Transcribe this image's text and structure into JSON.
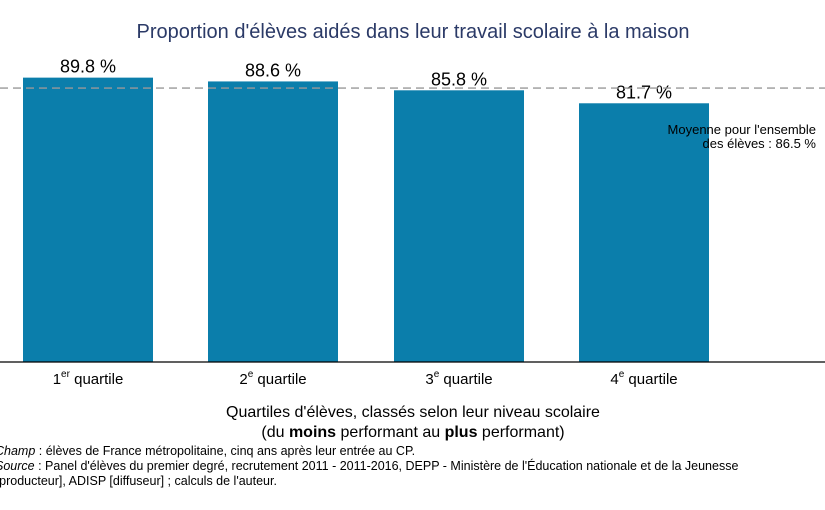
{
  "chart_data": {
    "type": "bar",
    "title": "Proportion d'élèves aidés dans leur travail scolaire à la maison",
    "categories": [
      {
        "main": "1",
        "sup": "er",
        "rest": " quartile"
      },
      {
        "main": "2",
        "sup": "e",
        "rest": " quartile"
      },
      {
        "main": "3",
        "sup": "e",
        "rest": " quartile"
      },
      {
        "main": "4",
        "sup": "e",
        "rest": " quartile"
      }
    ],
    "values": [
      89.8,
      88.6,
      85.8,
      81.7
    ],
    "value_labels": [
      "89.8 %",
      "88.6 %",
      "85.8 %",
      "81.7 %"
    ],
    "reference_line": {
      "value": 86.5,
      "label_line1": "Moyenne pour l'ensemble",
      "label_line2": "des élèves : 86.5 %"
    },
    "xlabel_line1": "Quartiles d'élèves, classés selon leur niveau scolaire",
    "xlabel_line2": {
      "pre": "(du ",
      "bold1": "moins",
      "mid": " performant au ",
      "bold2": "plus",
      "post": " performant)"
    },
    "ylim": [
      0,
      96
    ],
    "grid": false,
    "colors": {
      "bar": "#0b7eab",
      "title": "#2b3a67",
      "reference": "#999999"
    }
  },
  "notes": {
    "champ_label": "Champ",
    "champ_text": " : élèves de France métropolitaine, cinq ans après leur entrée au CP.",
    "source_label": "Source",
    "source_text": " : Panel d'élèves du premier degré, recrutement 2011 - 2011-2016, DEPP - Ministère de l'Éducation nationale et de la Jeunesse",
    "source_text2": "(producteur], ADISP [diffuseur] ; calculs de l'auteur."
  }
}
